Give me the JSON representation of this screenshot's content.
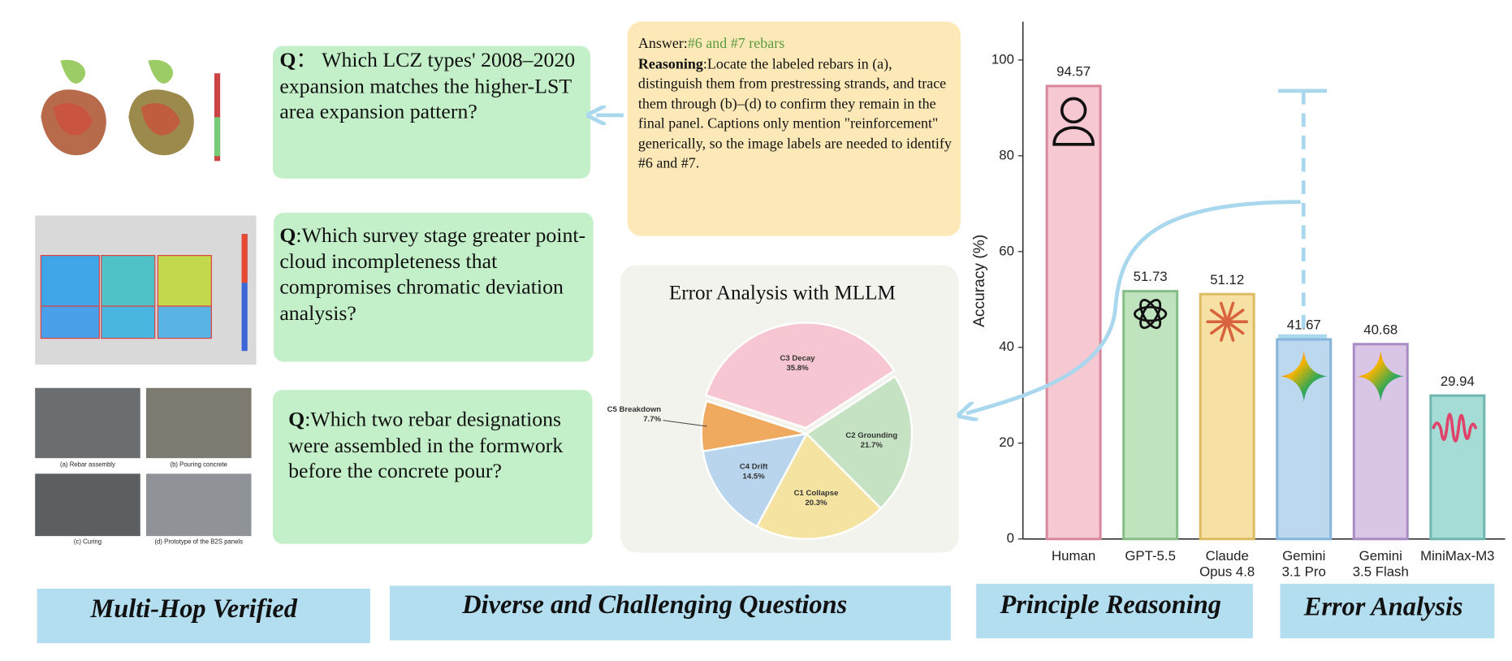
{
  "questions": [
    {
      "label": "Q",
      "text": "：  Which LCZ types' 2008–2020 expansion matches the higher-LST area expansion pattern?"
    },
    {
      "label": "Q",
      "text": ":Which survey stage greater point-cloud incompleteness that compromises chromatic deviation analysis?"
    },
    {
      "label": "Q",
      "text": ":Which two rebar designations were assembled in the formwork before the concrete pour?"
    }
  ],
  "answer": {
    "label": "Answer:",
    "value": "#6 and #7 rebars",
    "reasoning_label": "Reasoning",
    "reasoning": ":Locate the labeled rebars in (a), distinguish them from prestressing strands, and trace them through (b)–(d) to confirm they remain in the final panel. Captions only mention \"reinforcement\" generically, so the image labels are needed to identify #6 and #7."
  },
  "photo_captions": [
    "(a) Rebar assembly",
    "(b) Pouring concrete",
    "(c) Curing",
    "(d) Prototype of the B2S panels"
  ],
  "banners": [
    "Multi-Hop Verified",
    "Diverse and Challenging Questions",
    "Principle Reasoning",
    "Error Analysis"
  ],
  "chart_data": [
    {
      "type": "bar",
      "y_label": "Accuracy (%)",
      "categories": [
        "Human",
        "GPT-5.5",
        "Claude\nOpus 4.8",
        "Gemini\n3.1 Pro",
        "Gemini\n3.5 Flash",
        "MiniMax-M3"
      ],
      "values": [
        94.57,
        51.73,
        51.12,
        41.67,
        40.68,
        29.94
      ],
      "colors": [
        "#f6c8d2",
        "#bfe3bd",
        "#f6e0a3",
        "#bcd8ef",
        "#d9c6e6",
        "#a6dcd6"
      ],
      "edgecolors": [
        "#d9879a",
        "#86be88",
        "#dcbc62",
        "#87b4d9",
        "#a98cc4",
        "#6fb6b0"
      ],
      "ylim": [
        0,
        108
      ],
      "yticks": [
        0,
        20,
        40,
        60,
        80,
        100
      ]
    },
    {
      "type": "pie",
      "title": "Error Analysis with MLLM",
      "categories": [
        "C3 Decay",
        "C5 Breakdown",
        "C4 Drift",
        "C1 Collapse",
        "C2 Grounding"
      ],
      "values": [
        35.8,
        7.7,
        14.5,
        20.3,
        21.7
      ],
      "value_labels": [
        "35.8%",
        "7.7%",
        "14.5%",
        "20.3%",
        "21.7%"
      ],
      "colors": [
        "#f7c6d3",
        "#f0aa5f",
        "#b9d5ee",
        "#f5e3a2",
        "#c5e3c3"
      ]
    }
  ]
}
